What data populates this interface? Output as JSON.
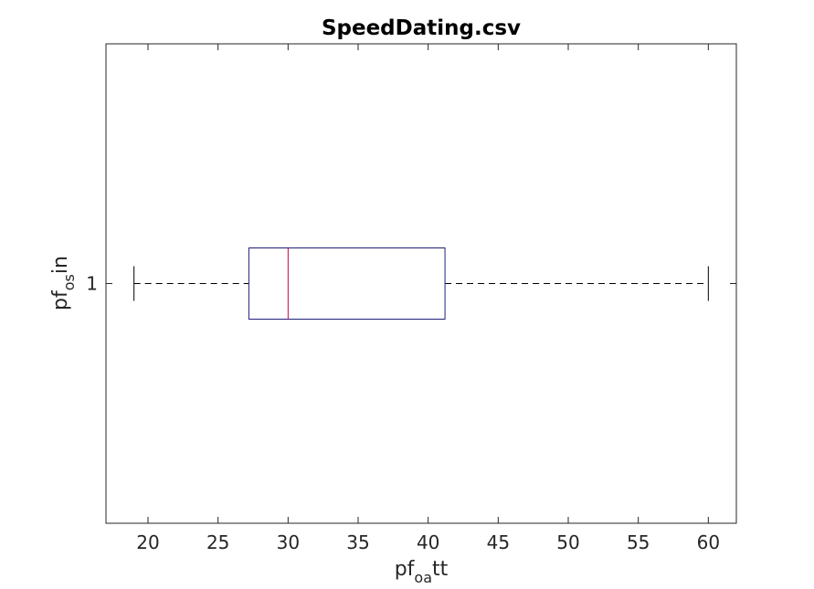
{
  "chart_data": {
    "type": "boxplot",
    "title": "SpeedDating.csv",
    "orientation": "horizontal",
    "xlabel": {
      "base": "pf",
      "sub": "oa",
      "rest": "tt"
    },
    "ylabel": {
      "base": "pf",
      "sub": "os",
      "rest": "in"
    },
    "xlim": [
      17,
      62
    ],
    "xticks": [
      "20",
      "25",
      "30",
      "35",
      "40",
      "45",
      "50",
      "55",
      "60"
    ],
    "yticks": [
      "1"
    ],
    "grid": false,
    "boxes": [
      {
        "category": "1",
        "whisker_low": 19,
        "q1": 27.2,
        "median": 30,
        "q3": 41.2,
        "whisker_high": 60
      }
    ],
    "colors": {
      "box": "#1f1f7a",
      "median": "#c8003c",
      "whisker": "#000000",
      "axes": "#262626"
    }
  }
}
